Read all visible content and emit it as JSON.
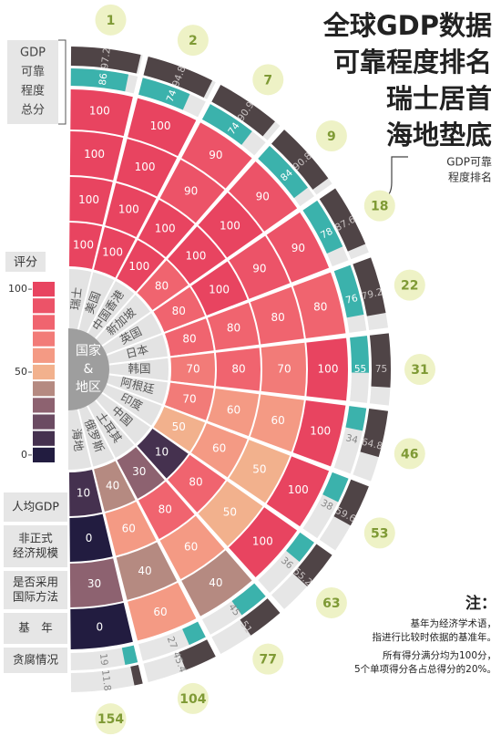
{
  "chart_data": {
    "type": "radial_bar",
    "title": [
      "全球GDP数据",
      "可靠程度排名",
      "瑞士居首",
      "海地垫底"
    ],
    "center_label": [
      "国家",
      "&",
      "地区"
    ],
    "categories": [
      "瑞士",
      "美国",
      "中国香港",
      "新加坡",
      "英国",
      "日本",
      "韩国",
      "阿根廷",
      "印度",
      "中国",
      "土耳其",
      "俄罗斯",
      "海地"
    ],
    "series": [
      {
        "name": [
          "人均GDP"
        ],
        "values": [
          100,
          100,
          100,
          80,
          80,
          80,
          70,
          70,
          50,
          10,
          30,
          40,
          10
        ]
      },
      {
        "name": [
          "非正式",
          "经济规模"
        ],
        "values": [
          100,
          100,
          100,
          100,
          100,
          80,
          80,
          60,
          60,
          80,
          80,
          60,
          0
        ]
      },
      {
        "name": [
          "是否采用",
          "国际方法"
        ],
        "values": [
          100,
          100,
          90,
          100,
          90,
          80,
          70,
          60,
          50,
          50,
          60,
          40,
          30
        ]
      },
      {
        "name": [
          "基　年"
        ],
        "values": [
          100,
          100,
          90,
          90,
          90,
          80,
          100,
          100,
          100,
          100,
          40,
          60,
          0
        ]
      },
      {
        "name": [
          "贪腐情况"
        ],
        "color": "#3bb2ac",
        "values": [
          86,
          74,
          74,
          84,
          78,
          76,
          55,
          34,
          38,
          36,
          45,
          27,
          19
        ]
      },
      {
        "name": [
          "GDP",
          "可靠",
          "程度",
          "总分"
        ],
        "color": "#4f4446",
        "values": [
          97.2,
          94.8,
          90.9,
          90.8,
          87.6,
          79.2,
          75,
          64.8,
          59.6,
          55.2,
          51,
          45.4,
          11.8
        ]
      }
    ],
    "ranks": [
      1,
      2,
      7,
      9,
      18,
      22,
      31,
      46,
      53,
      63,
      77,
      104,
      154
    ],
    "rank_label": [
      "GDP可靠",
      "程度排名"
    ],
    "legend": {
      "title": "评分",
      "ticks": [
        100,
        50,
        0
      ]
    },
    "color_scale": [
      "#221c40",
      "#45314f",
      "#6b4b62",
      "#8d6270",
      "#b58a81",
      "#f2b18d",
      "#f49a84",
      "#f27b78",
      "#f0646f",
      "#ec5368",
      "#e84460"
    ],
    "note": {
      "title": "注：",
      "lines": [
        "基年为经济学术语，",
        "指进行比较时依据的基准年。",
        "所有得分满分均为100分，",
        "5个单项得分各占总得分的20%。"
      ]
    }
  }
}
